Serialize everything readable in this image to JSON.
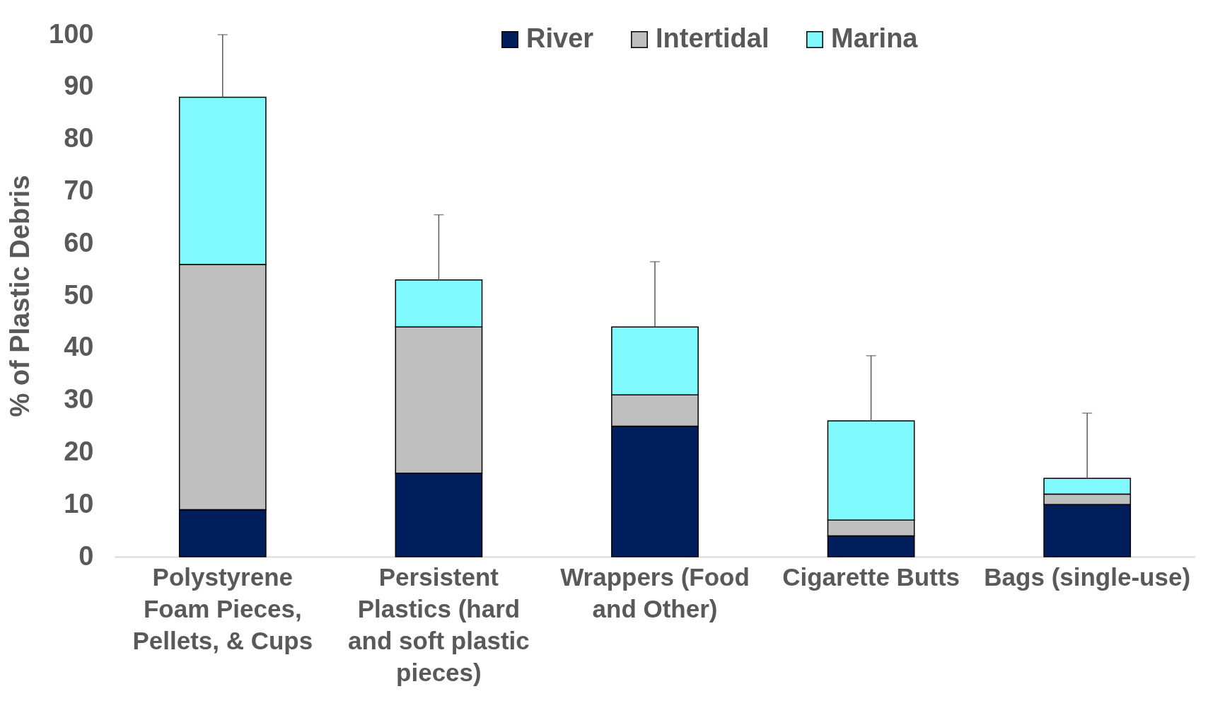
{
  "chart_data": {
    "type": "bar",
    "stacked": true,
    "ylabel": "% of Plastic Debris",
    "categories": [
      "Polystyrene Foam Pieces, Pellets, & Cups",
      "Persistent Plastics (hard and soft plastic pieces)",
      "Wrappers (Food and Other)",
      "Cigarette Butts",
      "Bags (single-use)"
    ],
    "series": [
      {
        "name": "River",
        "color": "#001f5c",
        "values": [
          9,
          16,
          25,
          4,
          10
        ]
      },
      {
        "name": "Intertidal",
        "color": "#bfbfbf",
        "values": [
          47,
          28,
          6,
          3,
          2
        ]
      },
      {
        "name": "Marina",
        "color": "#7ff9fc",
        "values": [
          32,
          9,
          13,
          19,
          3
        ],
        "errors": [
          [
            88,
            100
          ],
          [
            53,
            65.5
          ],
          [
            44,
            56.5
          ],
          [
            26,
            38.5
          ],
          [
            15,
            27.5
          ]
        ]
      }
    ],
    "ylim": [
      0,
      100
    ],
    "yticks": [
      0,
      10,
      20,
      30,
      40,
      50,
      60,
      70,
      80,
      90,
      100
    ],
    "grid": false,
    "legend": "top"
  }
}
